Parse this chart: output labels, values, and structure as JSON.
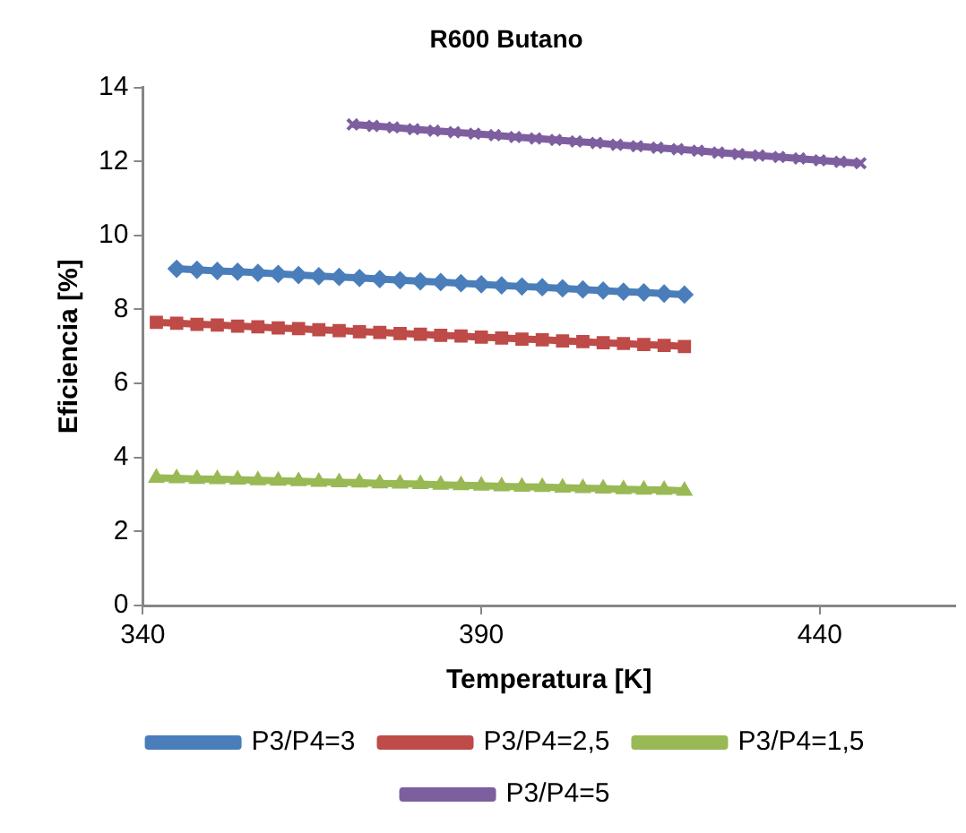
{
  "chart_data": {
    "type": "line",
    "title": "R600 Butano",
    "xlabel": "Temperatura [K]",
    "ylabel": "Eficiencia [%]",
    "xlim": [
      340,
      460
    ],
    "xticks": [
      340,
      390,
      440
    ],
    "ylim": [
      0,
      14
    ],
    "yticks": [
      0,
      2,
      4,
      6,
      8,
      10,
      12,
      14
    ],
    "grid": false,
    "legend": "bottom",
    "series": [
      {
        "name": "P3/P4=3",
        "color": "#4a7ebb",
        "marker": "diamond",
        "x": [
          345,
          348,
          351,
          354,
          357,
          360,
          363,
          366,
          369,
          372,
          375,
          378,
          381,
          384,
          387,
          390,
          393,
          396,
          399,
          402,
          405,
          408,
          411,
          414,
          417,
          420
        ],
        "values": [
          9.1,
          9.07,
          9.04,
          9.02,
          8.99,
          8.96,
          8.93,
          8.9,
          8.88,
          8.85,
          8.82,
          8.79,
          8.76,
          8.74,
          8.71,
          8.68,
          8.65,
          8.62,
          8.6,
          8.57,
          8.54,
          8.51,
          8.48,
          8.46,
          8.43,
          8.4
        ]
      },
      {
        "name": "P3/P4=2,5",
        "color": "#be4b48",
        "marker": "square",
        "x": [
          342,
          345,
          348,
          351,
          354,
          357,
          360,
          363,
          366,
          369,
          372,
          375,
          378,
          381,
          384,
          387,
          390,
          393,
          396,
          399,
          402,
          405,
          408,
          411,
          414,
          417,
          420
        ],
        "values": [
          7.65,
          7.63,
          7.6,
          7.58,
          7.55,
          7.53,
          7.5,
          7.48,
          7.45,
          7.43,
          7.4,
          7.38,
          7.35,
          7.33,
          7.3,
          7.28,
          7.25,
          7.23,
          7.2,
          7.18,
          7.15,
          7.13,
          7.1,
          7.08,
          7.05,
          7.03,
          7.0
        ]
      },
      {
        "name": "P3/P4=1,5",
        "color": "#98b954",
        "marker": "triangle",
        "x": [
          342,
          345,
          348,
          351,
          354,
          357,
          360,
          363,
          366,
          369,
          372,
          375,
          378,
          381,
          384,
          387,
          390,
          393,
          396,
          399,
          402,
          405,
          408,
          411,
          414,
          417,
          420
        ],
        "values": [
          3.45,
          3.44,
          3.42,
          3.41,
          3.4,
          3.38,
          3.37,
          3.36,
          3.34,
          3.33,
          3.32,
          3.3,
          3.29,
          3.28,
          3.26,
          3.25,
          3.24,
          3.22,
          3.21,
          3.2,
          3.18,
          3.17,
          3.16,
          3.14,
          3.13,
          3.12,
          3.1
        ]
      },
      {
        "name": "P3/P4=5",
        "color": "#7d5fa0",
        "marker": "cross",
        "x": [
          371,
          374,
          377,
          380,
          383,
          386,
          389,
          392,
          395,
          398,
          401,
          404,
          407,
          410,
          413,
          416,
          419,
          422,
          425,
          428,
          431,
          434,
          437,
          440,
          443,
          446
        ],
        "values": [
          13.0,
          12.96,
          12.92,
          12.87,
          12.83,
          12.79,
          12.75,
          12.71,
          12.66,
          12.62,
          12.58,
          12.54,
          12.5,
          12.45,
          12.41,
          12.37,
          12.33,
          12.29,
          12.24,
          12.2,
          12.16,
          12.12,
          12.08,
          12.03,
          11.99,
          11.95
        ]
      }
    ]
  }
}
